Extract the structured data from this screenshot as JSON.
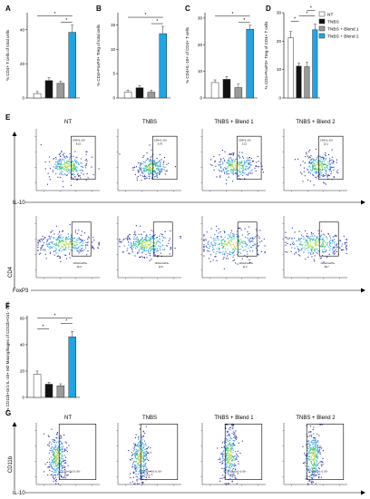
{
  "colors": {
    "NT": "#ffffff",
    "TNBS": "#111111",
    "TNBS + Blend 1": "#9a9a9a",
    "TNBS + Blend 2": "#1ea5e6"
  },
  "legend": [
    "NT",
    "TNBS",
    "TNBS + Blend 1",
    "TNBS + Blend 2"
  ],
  "chart_data": [
    {
      "type": "bar",
      "panel": "A",
      "title": "",
      "ylabel": "% CD4+ T cells of total cells",
      "xlabel": "",
      "categories": [
        "NT",
        "TNBS",
        "TNBS + Blend 1",
        "TNBS + Blend 2"
      ],
      "values": [
        2.6,
        10.2,
        8.6,
        38.5
      ],
      "errors": [
        1.2,
        1.8,
        1.2,
        4.2
      ],
      "ylim": [
        0,
        50
      ],
      "yticks": [
        "0",
        "20",
        "40"
      ],
      "annotations": [
        "*",
        "*"
      ]
    },
    {
      "type": "bar",
      "panel": "B",
      "title": "",
      "ylabel": "% CD4+FoxP3+ Treg of total cells",
      "xlabel": "",
      "categories": [
        "NT",
        "TNBS",
        "TNBS + Blend 1",
        "TNBS + Blend 2"
      ],
      "values": [
        1.2,
        2.1,
        1.2,
        13.2
      ],
      "errors": [
        0.4,
        0.4,
        0.4,
        1.5
      ],
      "ylim": [
        0,
        17.5
      ],
      "yticks": [
        "0",
        "5",
        "10",
        "15"
      ],
      "annotations": [
        "*",
        "*"
      ]
    },
    {
      "type": "bar",
      "panel": "C",
      "title": "",
      "ylabel": "% CD4+IL-10+ of CD4+ T cells",
      "xlabel": "",
      "categories": [
        "NT",
        "TNBS",
        "TNBS + Blend 1",
        "TNBS + Blend 2"
      ],
      "values": [
        5.8,
        7.0,
        3.9,
        25.8
      ],
      "errors": [
        1.0,
        1.0,
        1.3,
        1.5
      ],
      "ylim": [
        0,
        32
      ],
      "yticks": [
        "0",
        "10",
        "20",
        "30"
      ],
      "annotations": [
        "*",
        "*"
      ]
    },
    {
      "type": "bar",
      "panel": "D",
      "title": "",
      "ylabel": "% CD4+FoxP3+ Treg of CD4+ T cells",
      "xlabel": "",
      "categories": [
        "NT",
        "TNBS",
        "TNBS + Blend 1",
        "TNBS + Blend 2"
      ],
      "values": [
        21.2,
        11.2,
        11.0,
        24.0
      ],
      "errors": [
        2.2,
        1.0,
        1.5,
        2.0
      ],
      "ylim": [
        0,
        30
      ],
      "yticks": [
        "0",
        "10",
        "20",
        "30"
      ],
      "annotations": [
        "*",
        "*",
        "*"
      ]
    },
    {
      "type": "bar",
      "panel": "F",
      "title": "",
      "ylabel": "% CD11b+Gr1-IL-10+ M2 Macrophages of CD11b+Gr1- cells",
      "xlabel": "",
      "categories": [
        "NT",
        "TNBS",
        "TNBS + Blend 1",
        "TNBS + Blend 2"
      ],
      "values": [
        17.5,
        10.0,
        8.8,
        46.0
      ],
      "errors": [
        2.5,
        1.5,
        1.5,
        4.0
      ],
      "ylim": [
        0,
        62
      ],
      "yticks": [
        "0",
        "20",
        "40",
        "60"
      ],
      "annotations": [
        "*",
        "*",
        "*"
      ]
    }
  ],
  "panel_letters": {
    "A": "A",
    "B": "B",
    "C": "C",
    "D": "D",
    "E": "E",
    "F": "F",
    "G": "G"
  },
  "flow": {
    "columns": [
      "NT",
      "TNBS",
      "TNBS + Blend 1",
      "TNBS + Blend 2"
    ],
    "E_top_gate": [
      "CD4+IL-10+",
      "CD4+IL-10+",
      "CD4+IL-10+",
      "CD4+IL-10+"
    ],
    "E_top_values": [
      "8.15",
      "5.78",
      "3.22",
      "22.1"
    ],
    "E_bottom_gate": [
      "CD4+FoxP3+",
      "CD4+FoxP3+",
      "CD4+FoxP3+",
      "CD4+FoxP3+"
    ],
    "E_bottom_values": [
      "16.9",
      "13.0",
      "11.0",
      "38.7"
    ],
    "G_gate": [
      "CD11b+Gr1-IL-10+",
      "CD11b+Gr1-IL-10+",
      "CD11b+Gr1-IL-10+",
      "CD11b+Gr1-IL-10+"
    ],
    "G_values": [
      "19.4",
      "13.5",
      "6.97",
      "56.3"
    ],
    "E_top_x": "IL-10",
    "E_y": "CD4",
    "E_bottom_x": "FoxP3",
    "G_x": "IL-10",
    "G_y": "CD11b"
  }
}
